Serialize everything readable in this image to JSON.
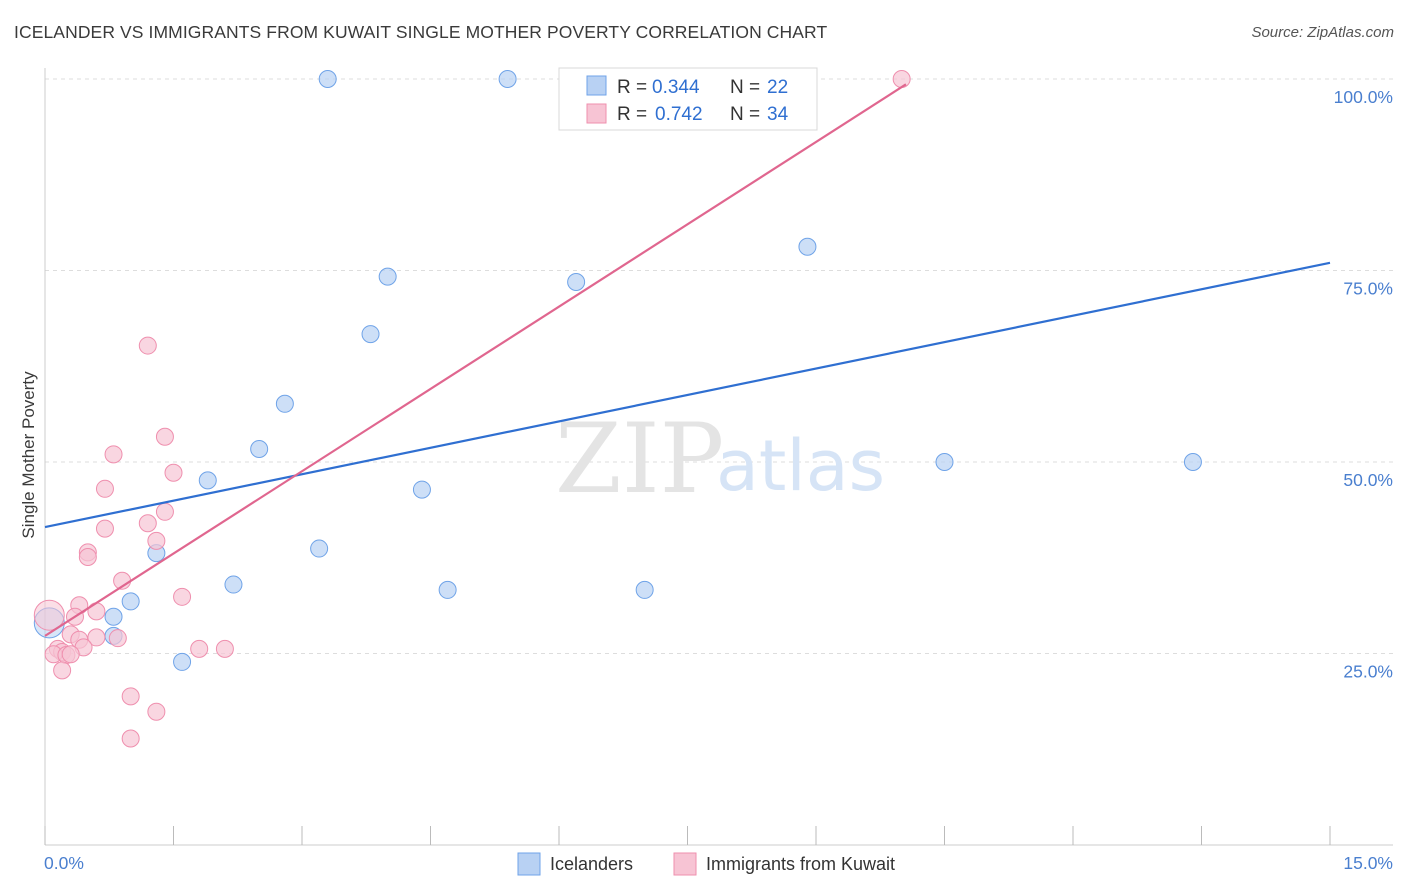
{
  "header": {
    "title": "ICELANDER VS IMMIGRANTS FROM KUWAIT SINGLE MOTHER POVERTY CORRELATION CHART",
    "source": "Source: ZipAtlas.com"
  },
  "watermark": {
    "zip": "ZIP",
    "atlas": "atlas"
  },
  "legend_top": {
    "rows": [
      {
        "r_label": "R = ",
        "r_value": "0.344",
        "n_label": "N = ",
        "n_value": "22"
      },
      {
        "r_label": "R = ",
        "r_value": "0.742",
        "n_label": "N = ",
        "n_value": "34"
      }
    ]
  },
  "chart_data": {
    "type": "scatter",
    "title": "ICELANDER VS IMMIGRANTS FROM KUWAIT SINGLE MOTHER POVERTY CORRELATION CHART",
    "xlabel": "",
    "ylabel": "Single Mother Poverty",
    "xlim": [
      0,
      15
    ],
    "ylim": [
      0,
      100
    ],
    "x_tick_labels": [
      "0.0%",
      "15.0%"
    ],
    "y_ticks": [
      25,
      50,
      75,
      100
    ],
    "y_tick_labels": [
      "25.0%",
      "50.0%",
      "75.0%",
      "100.0%"
    ],
    "grid": true,
    "legend_position": "top-center",
    "series": [
      {
        "name": "Icelanders",
        "color": "#6fa3e8",
        "fill": "#b8d1f3",
        "line_color": "#2f6fd1",
        "r": 0.344,
        "n": 22,
        "trend": {
          "x": [
            0,
            15
          ],
          "y": [
            41.5,
            76
          ]
        },
        "points": [
          [
            3.3,
            100
          ],
          [
            5.4,
            100
          ],
          [
            8.9,
            78.1
          ],
          [
            4.0,
            74.2
          ],
          [
            6.2,
            73.5
          ],
          [
            3.8,
            66.7
          ],
          [
            2.8,
            57.6
          ],
          [
            2.5,
            51.7
          ],
          [
            10.5,
            50
          ],
          [
            13.4,
            50
          ],
          [
            1.9,
            47.6
          ],
          [
            4.4,
            46.4
          ],
          [
            3.2,
            38.7
          ],
          [
            1.3,
            38.1
          ],
          [
            2.2,
            34.0
          ],
          [
            4.7,
            33.3
          ],
          [
            7.0,
            33.3
          ],
          [
            1.0,
            31.8
          ],
          [
            0.8,
            29.8
          ],
          [
            0.8,
            27.3
          ],
          [
            1.6,
            23.9
          ],
          [
            0.05,
            29.0
          ]
        ]
      },
      {
        "name": "Immigrants from Kuwait",
        "color": "#ef8fae",
        "fill": "#f7c4d4",
        "line_color": "#e0668f",
        "r": 0.742,
        "n": 34,
        "trend": {
          "x": [
            0,
            10.05
          ],
          "y": [
            27.3,
            99.3
          ]
        },
        "points": [
          [
            10.0,
            100
          ],
          [
            1.2,
            65.2
          ],
          [
            1.4,
            53.3
          ],
          [
            0.8,
            51.0
          ],
          [
            1.5,
            48.6
          ],
          [
            0.7,
            46.5
          ],
          [
            1.4,
            43.5
          ],
          [
            1.2,
            42.0
          ],
          [
            0.7,
            41.3
          ],
          [
            1.3,
            39.7
          ],
          [
            0.5,
            38.2
          ],
          [
            0.5,
            37.6
          ],
          [
            0.9,
            34.5
          ],
          [
            1.6,
            32.4
          ],
          [
            0.4,
            31.3
          ],
          [
            0.6,
            30.5
          ],
          [
            0.35,
            29.8
          ],
          [
            0.05,
            30.0
          ],
          [
            0.3,
            27.5
          ],
          [
            0.6,
            27.1
          ],
          [
            0.85,
            27.0
          ],
          [
            0.4,
            26.8
          ],
          [
            0.45,
            25.8
          ],
          [
            0.15,
            25.6
          ],
          [
            1.8,
            25.6
          ],
          [
            2.1,
            25.6
          ],
          [
            0.2,
            25.2
          ],
          [
            0.1,
            24.9
          ],
          [
            0.25,
            24.8
          ],
          [
            0.3,
            24.9
          ],
          [
            0.2,
            22.8
          ],
          [
            1.0,
            19.4
          ],
          [
            1.3,
            17.4
          ],
          [
            1.0,
            13.9
          ]
        ]
      }
    ]
  }
}
